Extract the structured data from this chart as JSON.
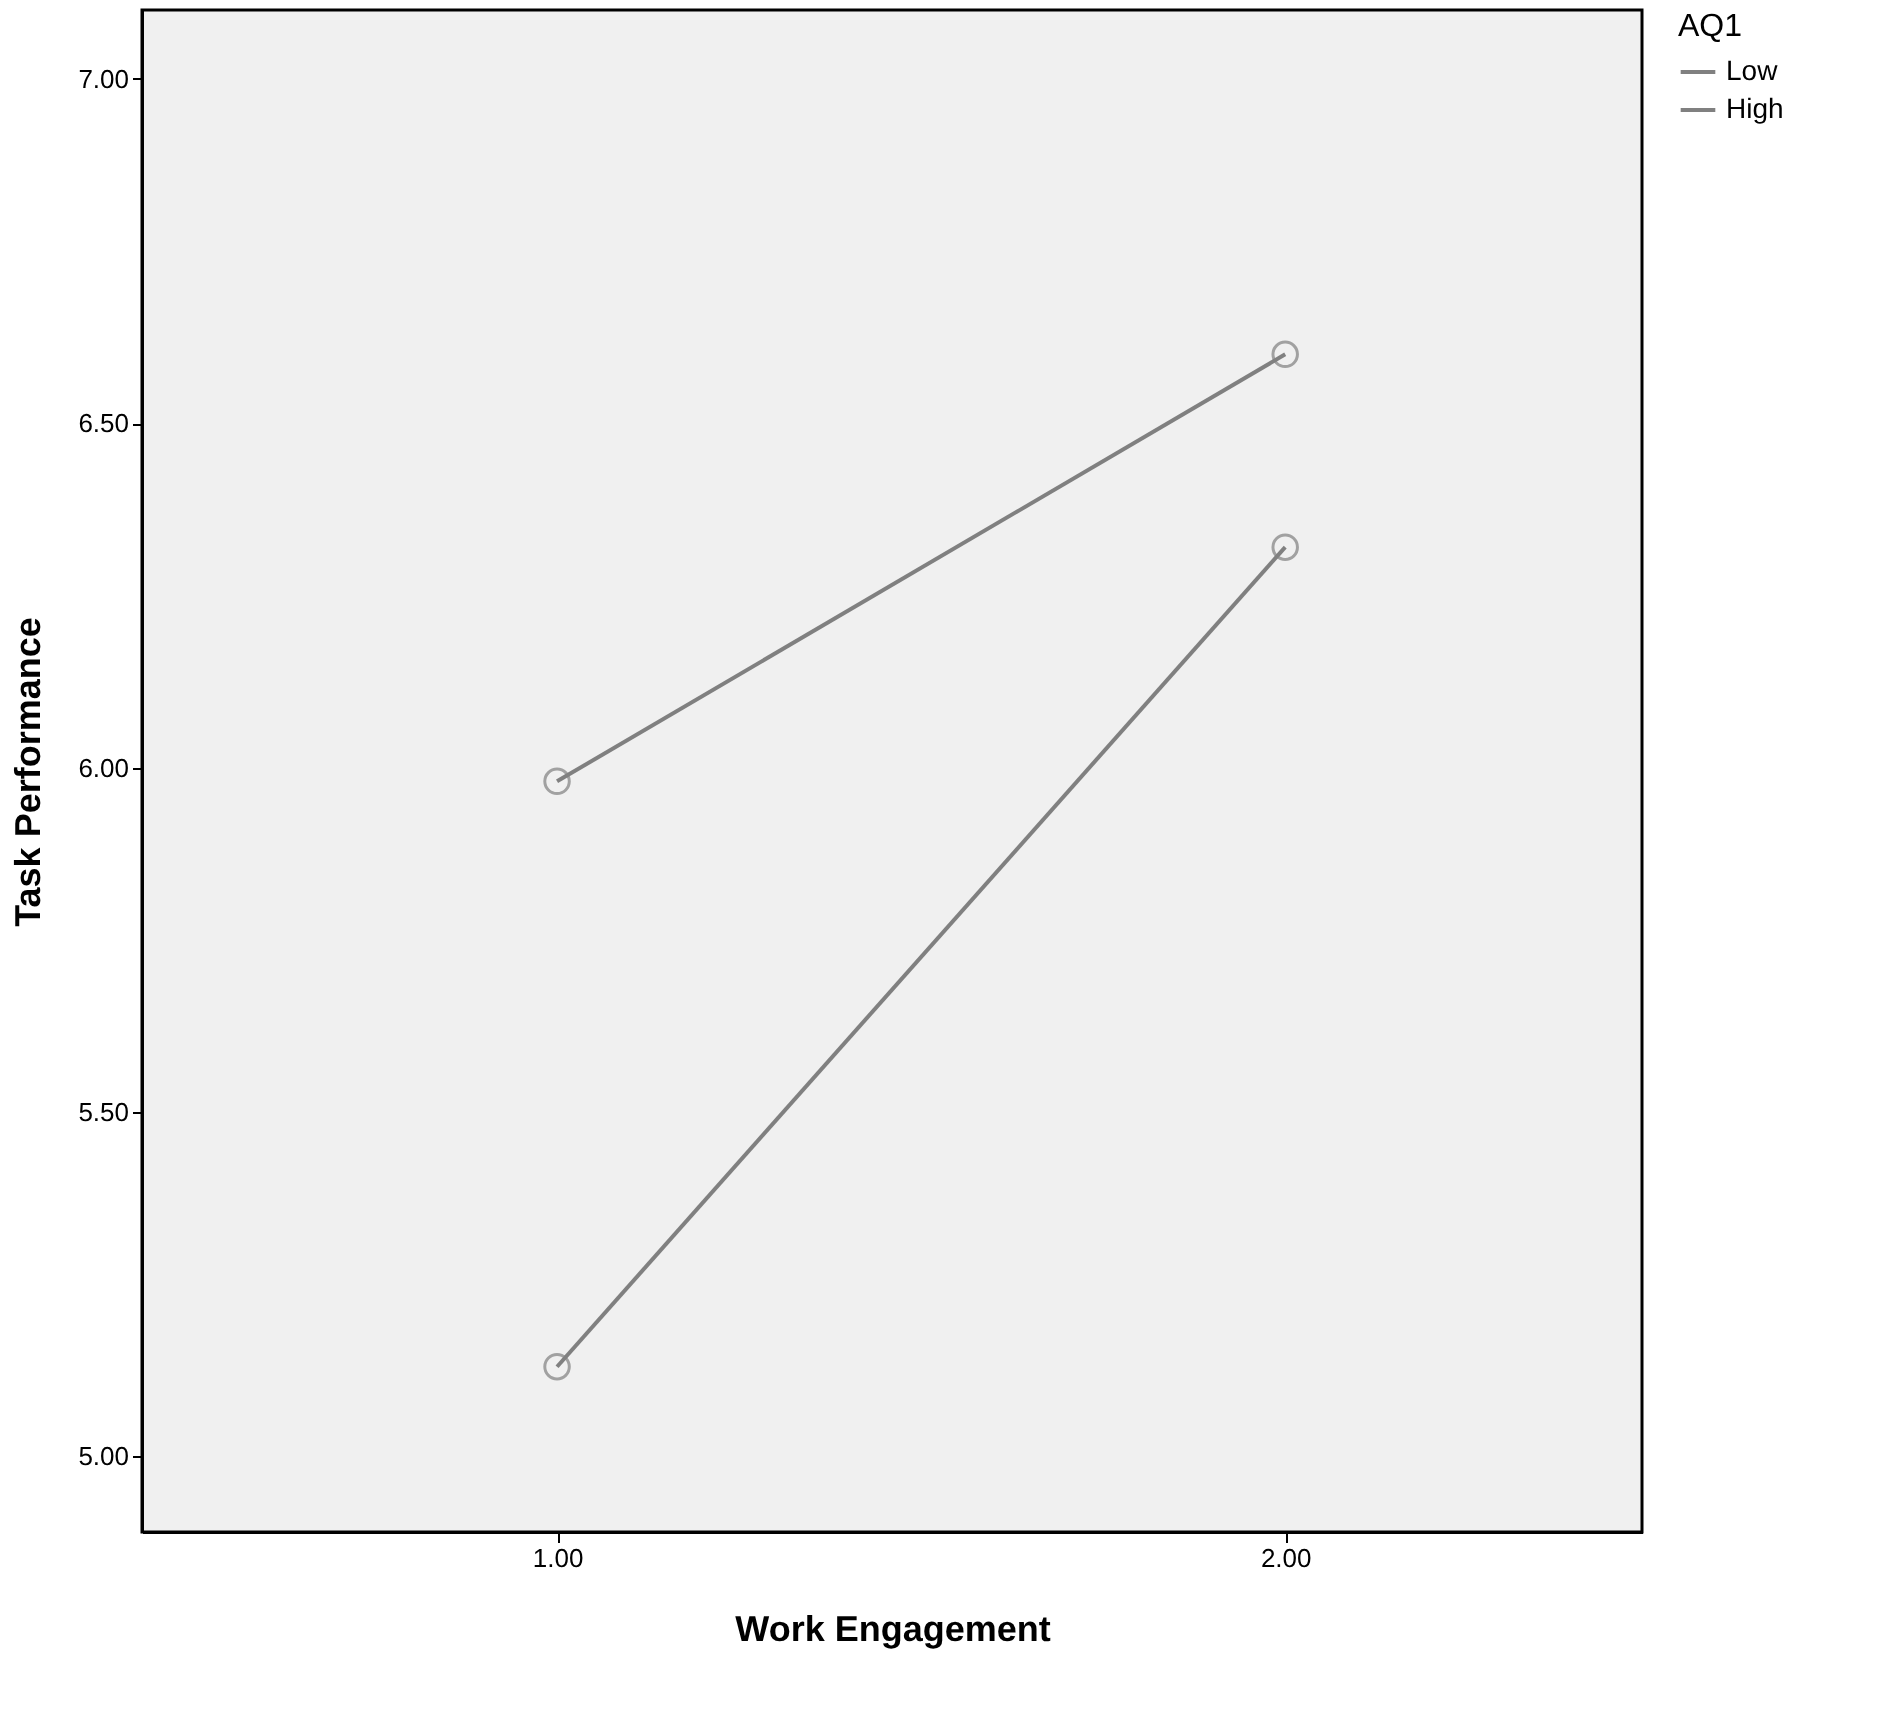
{
  "chart_data": {
    "type": "line",
    "xlabel": "Work Engagement",
    "ylabel": "Task Performance",
    "legend_title": "AQ1",
    "x": [
      1,
      2
    ],
    "series": [
      {
        "name": "Low",
        "color": "#808080",
        "values": [
          5.13,
          6.32
        ]
      },
      {
        "name": "High",
        "color": "#808080",
        "values": [
          5.98,
          6.6
        ]
      }
    ],
    "xlim": [
      0.43,
      2.49
    ],
    "xticks": [
      {
        "value": 1,
        "label": "1.00"
      },
      {
        "value": 2,
        "label": "2.00"
      }
    ],
    "ylim": [
      4.89,
      7.1
    ],
    "yticks": [
      {
        "value": 5,
        "label": "5.00"
      },
      {
        "value": 5.5,
        "label": "5.50"
      },
      {
        "value": 6,
        "label": "6.00"
      },
      {
        "value": 6.5,
        "label": "6.50"
      },
      {
        "value": 7,
        "label": "7.00"
      }
    ],
    "marker": "circle",
    "line_style": "solid",
    "grid": false,
    "legend": "top right"
  }
}
